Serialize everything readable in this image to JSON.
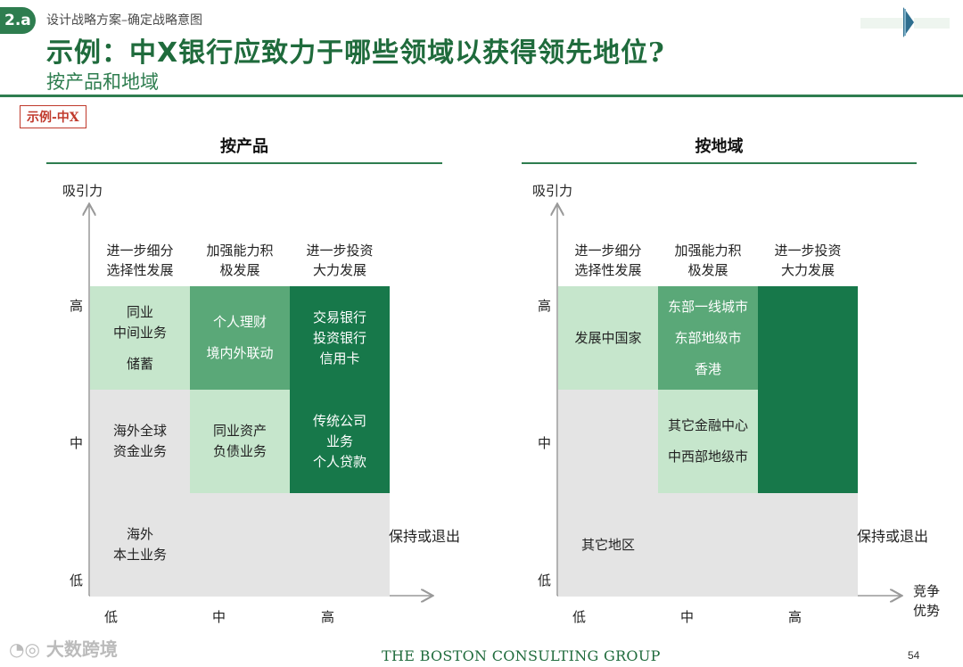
{
  "header": {
    "badge": "2.a",
    "crumb": "设计战略方案–确定战略意图",
    "title_prefix": "示例：中",
    "title_x": "X",
    "title_suffix": "银行应致力于哪些领域以获得领先地位?",
    "subtitle": "按产品和地域",
    "tag": "示例-中X"
  },
  "panels": [
    {
      "title": "按产品",
      "y_axis": "吸引力",
      "y_levels": [
        "高",
        "中",
        "低"
      ],
      "x_levels": [
        "低",
        "中",
        "高"
      ],
      "x_axis": "",
      "col_heads": [
        [
          "进一步细分",
          "选择性发展"
        ],
        [
          "加强能力积",
          "极发展"
        ],
        [
          "进一步投资",
          "大力发展"
        ]
      ],
      "side_label": "保持或退出",
      "cells": {
        "r0c0": [
          "同业",
          "中间业务",
          "",
          "储蓄"
        ],
        "r0c1": [
          "个人理财",
          "",
          "境内外联动"
        ],
        "r0c2": [
          "交易银行",
          "投资银行",
          "信用卡"
        ],
        "r1c0": [
          "海外全球",
          "资金业务"
        ],
        "r1c1": [
          "同业资产",
          "负债业务"
        ],
        "r1c2": [
          "传统公司",
          "业务",
          "个人贷款"
        ],
        "r2c0": [
          "海外",
          "本土业务"
        ],
        "r2c1": [],
        "r2c2": []
      }
    },
    {
      "title": "按地域",
      "y_axis": "吸引力",
      "y_levels": [
        "高",
        "中",
        "低"
      ],
      "x_levels": [
        "低",
        "中",
        "高"
      ],
      "x_axis": [
        "竞争",
        "优势"
      ],
      "col_heads": [
        [
          "进一步细分",
          "选择性发展"
        ],
        [
          "加强能力积",
          "极发展"
        ],
        [
          "进一步投资",
          "大力发展"
        ]
      ],
      "side_label": "保持或退出",
      "cells": {
        "r0c0": [
          "发展中国家"
        ],
        "r0c1": [
          "东部一线城市",
          "",
          "东部地级市",
          "",
          "香港"
        ],
        "r0c2": [],
        "r1c0": [],
        "r1c1": [
          "其它金融中心",
          "",
          "中西部地级市"
        ],
        "r1c2": [],
        "r2c0": [
          "其它地区"
        ],
        "r2c1": [],
        "r2c2": []
      }
    }
  ],
  "footer": {
    "watermark": "大数跨境",
    "company": "THE BOSTON CONSULTING GROUP",
    "page_number": "54"
  },
  "colors": {
    "brand_green": "#2e7d4f",
    "light_green": "#c6e6cc",
    "mid_green": "#5aa878",
    "dark_green": "#17784a",
    "gray": "#e4e4e4",
    "tag_red": "#c0392b"
  }
}
